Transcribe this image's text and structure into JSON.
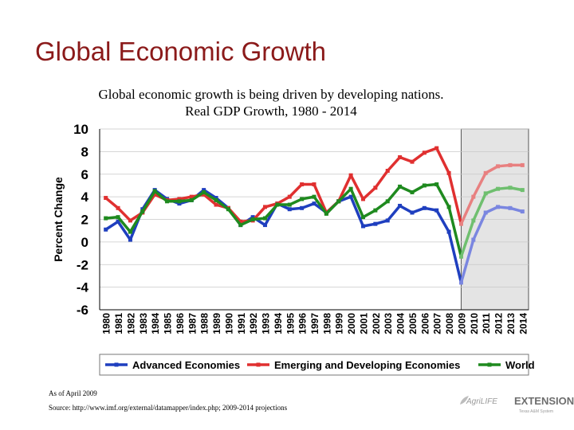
{
  "slide": {
    "title": "Global Economic Growth",
    "subtitle_line1": "Global economic growth is being driven by developing nations.",
    "subtitle_line2": "Real GDP Growth, 1980 - 2014",
    "footnote_date": "As of April 2009",
    "footnote_source": "Source:  http://www.imf.org/external/datamapper/index.php; 2009-2014 projections",
    "logo_agrilife": "AgriLIFE",
    "logo_extension": "EXTENSION",
    "logo_tagline": "Texas A&M System"
  },
  "colors": {
    "advanced": "#1f3fbf",
    "emerging": "#e03030",
    "world": "#1f8a1f",
    "advanced_projection": "#7a86e0",
    "emerging_projection": "#e88080",
    "world_projection": "#6fbf6f",
    "projection_shade": "#e4e4e4",
    "title": "#8b1a1a"
  },
  "chart_data": {
    "type": "line",
    "title": "Real GDP Growth, 1980 - 2014",
    "xlabel": "",
    "ylabel": "Percent Change",
    "ylim": [
      -6,
      10
    ],
    "yticks": [
      -6,
      -4,
      -2,
      0,
      2,
      4,
      6,
      8,
      10
    ],
    "grid": true,
    "legend_position": "bottom",
    "projection_start": "2009",
    "categories": [
      "1980",
      "1981",
      "1982",
      "1983",
      "1984",
      "1985",
      "1986",
      "1987",
      "1988",
      "1989",
      "1990",
      "1991",
      "1992",
      "1993",
      "1994",
      "1995",
      "1996",
      "1997",
      "1998",
      "1999",
      "2000",
      "2001",
      "2002",
      "2003",
      "2004",
      "2005",
      "2006",
      "2007",
      "2008",
      "2009",
      "2010",
      "2011",
      "2012",
      "2013",
      "2014"
    ],
    "series": [
      {
        "name": "Advanced Economies",
        "key": "advanced",
        "values": [
          1.1,
          1.8,
          0.2,
          2.9,
          4.6,
          3.8,
          3.4,
          3.7,
          4.6,
          3.9,
          3.0,
          1.5,
          2.2,
          1.5,
          3.4,
          2.9,
          3.0,
          3.4,
          2.6,
          3.6,
          4.0,
          1.4,
          1.6,
          1.9,
          3.2,
          2.6,
          3.0,
          2.8,
          0.9,
          -3.6,
          0.2,
          2.6,
          3.1,
          3.0,
          2.7
        ]
      },
      {
        "name": "Emerging and Developing Economies",
        "key": "emerging",
        "values": [
          3.9,
          3.0,
          1.9,
          2.6,
          4.2,
          3.7,
          3.8,
          4.0,
          4.2,
          3.3,
          3.0,
          1.8,
          1.9,
          3.1,
          3.4,
          4.0,
          5.1,
          5.1,
          2.6,
          3.6,
          5.9,
          3.8,
          4.8,
          6.3,
          7.5,
          7.1,
          7.9,
          8.3,
          6.1,
          1.6,
          4.0,
          6.1,
          6.7,
          6.8,
          6.8
        ]
      },
      {
        "name": "World",
        "key": "world",
        "values": [
          2.1,
          2.2,
          0.9,
          2.7,
          4.5,
          3.6,
          3.6,
          3.7,
          4.4,
          3.7,
          2.9,
          1.5,
          2.0,
          2.1,
          3.3,
          3.3,
          3.8,
          4.0,
          2.5,
          3.6,
          4.7,
          2.2,
          2.8,
          3.6,
          4.9,
          4.4,
          5.0,
          5.1,
          3.1,
          -1.3,
          1.9,
          4.3,
          4.7,
          4.8,
          4.6
        ]
      }
    ]
  }
}
